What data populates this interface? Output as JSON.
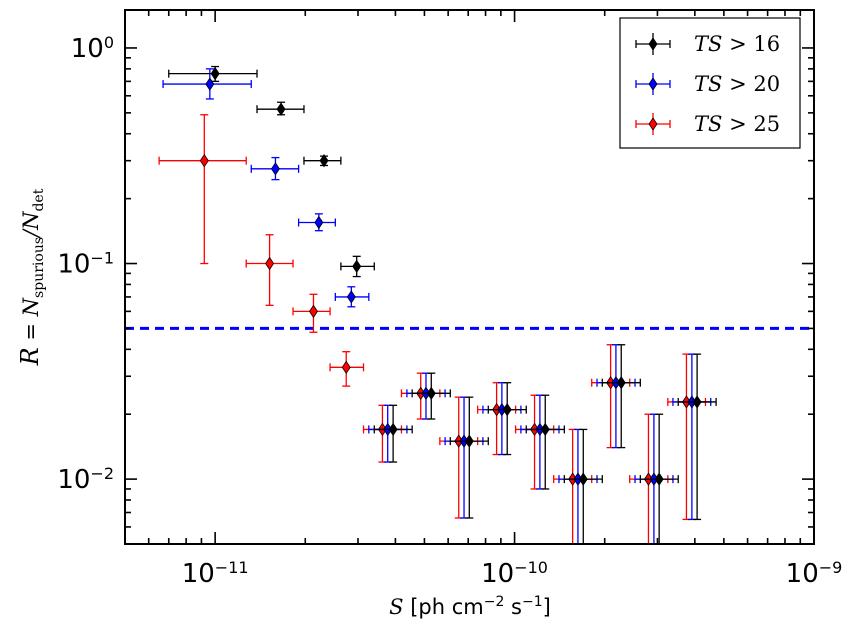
{
  "chart_data": {
    "type": "scatter",
    "x_scale": "log",
    "y_scale": "log",
    "xlim": [
      5e-12,
      1e-09
    ],
    "ylim": [
      0.005,
      1.5
    ],
    "xlabel": {
      "var": "S",
      "text": " [ph cm",
      "exp": "−2",
      "mid": "  s",
      "exp2": "−1",
      "end": "]"
    },
    "ylabel": {
      "script": "R",
      "eq": " = N",
      "sub1": "spurious",
      "slash": "/N",
      "sub2": "det"
    },
    "x_ticks": [
      {
        "value": 1e-11,
        "base": "10",
        "exp": "−11"
      },
      {
        "value": 1e-10,
        "base": "10",
        "exp": "−10"
      },
      {
        "value": 1e-09,
        "base": "10",
        "exp": "−9"
      }
    ],
    "y_ticks": [
      {
        "value": 1,
        "base": "10",
        "exp": "0"
      },
      {
        "value": 0.1,
        "base": "10",
        "exp": "−1"
      },
      {
        "value": 0.01,
        "base": "10",
        "exp": "−2"
      }
    ],
    "threshold_line": {
      "y": 0.05,
      "color": "#0000ff",
      "style": "dashed"
    },
    "legend": {
      "position": "top-right"
    },
    "series": [
      {
        "name": "TS>16",
        "label_a": "TS",
        "label_b": " > 16",
        "color": "#000000",
        "points": [
          {
            "x": 1e-11,
            "y": 0.76,
            "xlo": 7e-12,
            "xhi": 1.38e-11,
            "ylo": 0.7,
            "yhi": 0.82
          },
          {
            "x": 1.66e-11,
            "y": 0.52,
            "xlo": 1.38e-11,
            "xhi": 1.98e-11,
            "ylo": 0.49,
            "yhi": 0.56
          },
          {
            "x": 2.31e-11,
            "y": 0.3,
            "xlo": 1.98e-11,
            "xhi": 2.63e-11,
            "ylo": 0.285,
            "yhi": 0.315
          },
          {
            "x": 2.97e-11,
            "y": 0.097,
            "xlo": 2.63e-11,
            "xhi": 3.4e-11,
            "ylo": 0.087,
            "yhi": 0.108
          },
          {
            "x": 3.93e-11,
            "y": 0.017,
            "xlo": 3.4e-11,
            "xhi": 4.55e-11,
            "ylo": 0.012,
            "yhi": 0.022
          },
          {
            "x": 5.27e-11,
            "y": 0.025,
            "xlo": 4.55e-11,
            "xhi": 6.1e-11,
            "ylo": 0.019,
            "yhi": 0.031
          },
          {
            "x": 7.06e-11,
            "y": 0.015,
            "xlo": 6.1e-11,
            "xhi": 8.17e-11,
            "ylo": 0.0066,
            "yhi": 0.024
          },
          {
            "x": 9.45e-11,
            "y": 0.021,
            "xlo": 8.17e-11,
            "xhi": 1.094e-10,
            "ylo": 0.013,
            "yhi": 0.028
          },
          {
            "x": 1.266e-10,
            "y": 0.017,
            "xlo": 1.094e-10,
            "xhi": 1.466e-10,
            "ylo": 0.009,
            "yhi": 0.0245
          },
          {
            "x": 1.696e-10,
            "y": 0.01,
            "xlo": 1.466e-10,
            "xhi": 1.963e-10,
            "ylo": 0.0045,
            "yhi": 0.017
          },
          {
            "x": 2.271e-10,
            "y": 0.028,
            "xlo": 1.963e-10,
            "xhi": 2.63e-10,
            "ylo": 0.014,
            "yhi": 0.042
          },
          {
            "x": 3.04e-10,
            "y": 0.01,
            "xlo": 2.63e-10,
            "xhi": 3.52e-10,
            "ylo": 0.0045,
            "yhi": 0.02
          },
          {
            "x": 4.07e-10,
            "y": 0.0228,
            "xlo": 3.52e-10,
            "xhi": 4.71e-10,
            "ylo": 0.0065,
            "yhi": 0.038
          }
        ]
      },
      {
        "name": "TS>20",
        "label_a": "TS",
        "label_b": " > 20",
        "color": "#0000ff",
        "points": [
          {
            "x": 9.6e-12,
            "y": 0.68,
            "xlo": 6.7e-12,
            "xhi": 1.32e-11,
            "ylo": 0.58,
            "yhi": 0.8
          },
          {
            "x": 1.59e-11,
            "y": 0.275,
            "xlo": 1.32e-11,
            "xhi": 1.9e-11,
            "ylo": 0.245,
            "yhi": 0.31
          },
          {
            "x": 2.22e-11,
            "y": 0.155,
            "xlo": 1.9e-11,
            "xhi": 2.52e-11,
            "ylo": 0.142,
            "yhi": 0.17
          },
          {
            "x": 2.85e-11,
            "y": 0.07,
            "xlo": 2.52e-11,
            "xhi": 3.26e-11,
            "ylo": 0.063,
            "yhi": 0.078
          },
          {
            "x": 3.77e-11,
            "y": 0.017,
            "xlo": 3.26e-11,
            "xhi": 4.37e-11,
            "ylo": 0.012,
            "yhi": 0.022
          },
          {
            "x": 5.06e-11,
            "y": 0.025,
            "xlo": 4.37e-11,
            "xhi": 5.86e-11,
            "ylo": 0.019,
            "yhi": 0.031
          },
          {
            "x": 6.78e-11,
            "y": 0.015,
            "xlo": 5.86e-11,
            "xhi": 7.84e-11,
            "ylo": 0.0066,
            "yhi": 0.024
          },
          {
            "x": 9.07e-11,
            "y": 0.021,
            "xlo": 7.84e-11,
            "xhi": 1.05e-10,
            "ylo": 0.013,
            "yhi": 0.028
          },
          {
            "x": 1.215e-10,
            "y": 0.017,
            "xlo": 1.05e-10,
            "xhi": 1.407e-10,
            "ylo": 0.009,
            "yhi": 0.0245
          },
          {
            "x": 1.628e-10,
            "y": 0.01,
            "xlo": 1.407e-10,
            "xhi": 1.885e-10,
            "ylo": 0.0045,
            "yhi": 0.017
          },
          {
            "x": 2.18e-10,
            "y": 0.028,
            "xlo": 1.885e-10,
            "xhi": 2.525e-10,
            "ylo": 0.014,
            "yhi": 0.042
          },
          {
            "x": 2.92e-10,
            "y": 0.01,
            "xlo": 2.525e-10,
            "xhi": 3.38e-10,
            "ylo": 0.0045,
            "yhi": 0.02
          },
          {
            "x": 3.91e-10,
            "y": 0.0228,
            "xlo": 3.38e-10,
            "xhi": 4.52e-10,
            "ylo": 0.0065,
            "yhi": 0.038
          }
        ]
      },
      {
        "name": "TS>25",
        "label_a": "TS",
        "label_b": " > 25",
        "color": "#ff0000",
        "points": [
          {
            "x": 9.2e-12,
            "y": 0.3,
            "xlo": 6.5e-12,
            "xhi": 1.27e-11,
            "ylo": 0.1,
            "yhi": 0.49
          },
          {
            "x": 1.52e-11,
            "y": 0.1,
            "xlo": 1.27e-11,
            "xhi": 1.82e-11,
            "ylo": 0.064,
            "yhi": 0.136
          },
          {
            "x": 2.13e-11,
            "y": 0.06,
            "xlo": 1.82e-11,
            "xhi": 2.42e-11,
            "ylo": 0.048,
            "yhi": 0.072
          },
          {
            "x": 2.74e-11,
            "y": 0.033,
            "xlo": 2.42e-11,
            "xhi": 3.13e-11,
            "ylo": 0.027,
            "yhi": 0.039
          },
          {
            "x": 3.62e-11,
            "y": 0.017,
            "xlo": 3.13e-11,
            "xhi": 4.19e-11,
            "ylo": 0.012,
            "yhi": 0.022
          },
          {
            "x": 4.86e-11,
            "y": 0.025,
            "xlo": 4.19e-11,
            "xhi": 5.63e-11,
            "ylo": 0.019,
            "yhi": 0.031
          },
          {
            "x": 6.51e-11,
            "y": 0.015,
            "xlo": 5.63e-11,
            "xhi": 7.53e-11,
            "ylo": 0.0066,
            "yhi": 0.024
          },
          {
            "x": 8.71e-11,
            "y": 0.021,
            "xlo": 7.53e-11,
            "xhi": 1.008e-10,
            "ylo": 0.013,
            "yhi": 0.028
          },
          {
            "x": 1.166e-10,
            "y": 0.017,
            "xlo": 1.008e-10,
            "xhi": 1.351e-10,
            "ylo": 0.009,
            "yhi": 0.0245
          },
          {
            "x": 1.563e-10,
            "y": 0.01,
            "xlo": 1.351e-10,
            "xhi": 1.81e-10,
            "ylo": 0.0045,
            "yhi": 0.017
          },
          {
            "x": 2.093e-10,
            "y": 0.028,
            "xlo": 1.81e-10,
            "xhi": 2.424e-10,
            "ylo": 0.014,
            "yhi": 0.042
          },
          {
            "x": 2.8e-10,
            "y": 0.01,
            "xlo": 2.424e-10,
            "xhi": 3.25e-10,
            "ylo": 0.0045,
            "yhi": 0.02
          },
          {
            "x": 3.75e-10,
            "y": 0.0228,
            "xlo": 3.25e-10,
            "xhi": 4.34e-10,
            "ylo": 0.0065,
            "yhi": 0.038
          }
        ]
      }
    ]
  }
}
